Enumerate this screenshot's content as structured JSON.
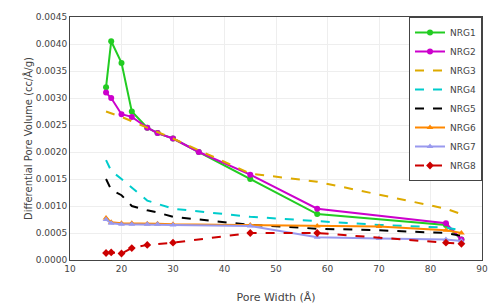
{
  "chart_data": {
    "type": "line",
    "x_label": "Pore Width (Å)",
    "y_label": "Differential Pore Volume (cc/Å/g)",
    "xlim": [
      10,
      90
    ],
    "ylim": [
      0,
      0.0045
    ],
    "xticks": [
      10,
      20,
      30,
      40,
      50,
      60,
      70,
      80,
      90
    ],
    "yticks": [
      {
        "value": 0,
        "label": "0.0000"
      },
      {
        "value": 0.0005,
        "label": "0.0005"
      },
      {
        "value": 0.001,
        "label": "0.0010"
      },
      {
        "value": 0.0015,
        "label": "0.0015"
      },
      {
        "value": 0.002,
        "label": "0.0020"
      },
      {
        "value": 0.0025,
        "label": "0.0025"
      },
      {
        "value": 0.003,
        "label": "0.0030"
      },
      {
        "value": 0.0035,
        "label": "0.0035"
      },
      {
        "value": 0.004,
        "label": "0.0040"
      },
      {
        "value": 0.0045,
        "label": "0.0045"
      }
    ],
    "grid": true,
    "legend": "upper right",
    "series": [
      {
        "name": "NRG1",
        "color": "#22cc22",
        "line_style": "solid",
        "marker": "circle",
        "x": [
          17,
          18,
          20,
          22,
          25,
          27,
          30,
          35,
          45,
          58,
          83,
          86
        ],
        "values": [
          0.0032,
          0.00405,
          0.00365,
          0.00275,
          0.00245,
          0.00235,
          0.00225,
          0.002,
          0.0015,
          0.00085,
          0.00065,
          0.00038
        ]
      },
      {
        "name": "NRG2",
        "color": "#cc00cc",
        "line_style": "solid",
        "marker": "circle",
        "x": [
          17,
          18,
          20,
          22,
          25,
          27,
          30,
          35,
          45,
          58,
          83,
          86
        ],
        "values": [
          0.0031,
          0.003,
          0.0027,
          0.00265,
          0.00245,
          0.00235,
          0.00225,
          0.002,
          0.00158,
          0.00095,
          0.00068,
          0.00038
        ]
      },
      {
        "name": "NRG3",
        "color": "#ddaa00",
        "line_style": "dashed",
        "x": [
          17,
          20,
          25,
          30,
          45,
          58,
          83,
          86
        ],
        "values": [
          0.00275,
          0.00265,
          0.00245,
          0.00225,
          0.0016,
          0.00145,
          0.00095,
          0.00085
        ]
      },
      {
        "name": "NRG4",
        "color": "#00cccc",
        "line_style": "dashed",
        "x": [
          17,
          18,
          20,
          25,
          30,
          45,
          58,
          70,
          83,
          86
        ],
        "values": [
          0.00185,
          0.00165,
          0.0015,
          0.0011,
          0.00095,
          0.0008,
          0.00072,
          0.00065,
          0.0006,
          0.00055
        ]
      },
      {
        "name": "NRG5",
        "color": "#000000",
        "line_style": "dashed",
        "x": [
          17,
          18,
          20,
          22,
          25,
          27,
          30,
          45,
          58,
          70,
          83,
          86
        ],
        "values": [
          0.0015,
          0.0013,
          0.0012,
          0.001,
          0.00092,
          0.00088,
          0.0008,
          0.00065,
          0.00058,
          0.00055,
          0.0005,
          0.00045
        ]
      },
      {
        "name": "NRG6",
        "color": "#ff8800",
        "line_style": "solid",
        "marker": "triangle",
        "x": [
          17,
          18,
          20,
          22,
          25,
          27,
          30,
          45,
          58,
          70,
          83,
          86
        ],
        "values": [
          0.00078,
          0.0007,
          0.00068,
          0.00068,
          0.00067,
          0.00067,
          0.00066,
          0.00065,
          0.00063,
          0.00062,
          0.00055,
          0.0005
        ]
      },
      {
        "name": "NRG7",
        "color": "#9999ee",
        "line_style": "solid",
        "marker": "triangle",
        "x": [
          17,
          18,
          20,
          22,
          25,
          27,
          30,
          45,
          58,
          70,
          83,
          86
        ],
        "values": [
          0.00075,
          0.00068,
          0.00066,
          0.00066,
          0.00066,
          0.00066,
          0.00065,
          0.00063,
          0.00042,
          0.0004,
          0.00038,
          0.00035
        ]
      },
      {
        "name": "NRG8",
        "color": "#cc0000",
        "line_style": "dashed",
        "marker": "diamond",
        "x": [
          17,
          18,
          20,
          22,
          25,
          30,
          45,
          58,
          83,
          86
        ],
        "values": [
          0.00013,
          0.00014,
          0.00012,
          0.00022,
          0.00028,
          0.00032,
          0.0005,
          0.0005,
          0.00032,
          0.0003
        ]
      }
    ]
  }
}
